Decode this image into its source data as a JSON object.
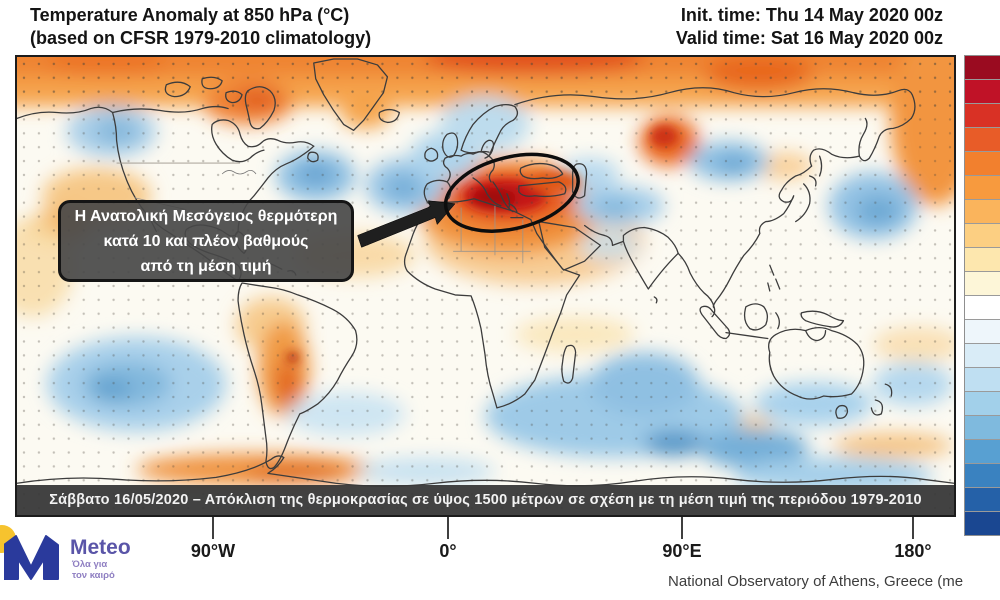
{
  "header": {
    "title_line1": "Temperature Anomaly at 850 hPa (°C)",
    "title_line2": "(based on CFSR 1979-2010 climatology)",
    "init_time": "Init. time: Thu 14 May 2020 00z",
    "valid_time": "Valid time: Sat 16 May 2020 00z"
  },
  "map": {
    "annotation_box": {
      "line1": "Η Ανατολική Μεσόγειος θερμότερη",
      "line2": "κατά 10 και πλέον βαθμούς",
      "line3": "από τη μέση τιμή"
    },
    "caption_bar": "Σάββατο 16/05/2020 – Απόκλιση της θερμοκρασίας σε ύψος 1500 μέτρων σε σχέση με τη μέση τιμή της περιόδου 1979-2010",
    "x_ticks": [
      "90°W",
      "0°",
      "90°E",
      "180°"
    ]
  },
  "colorbar": {
    "colors": [
      "#9a0b20",
      "#c01227",
      "#d93125",
      "#e85c28",
      "#f2802e",
      "#f79a3e",
      "#fab45c",
      "#fccf82",
      "#fde7ae",
      "#fdf6d8",
      "#ffffff",
      "#eef6fb",
      "#d9ecf7",
      "#bfdff2",
      "#a2d0ea",
      "#7fbade",
      "#58a0d2",
      "#3a82c0",
      "#2561a8",
      "#1a4791"
    ]
  },
  "footer": {
    "brand": "Meteo",
    "tagline_line1": "Όλα για",
    "tagline_line2": "τον καιρό",
    "attribution": "National Observatory of Athens, Greece (me"
  }
}
